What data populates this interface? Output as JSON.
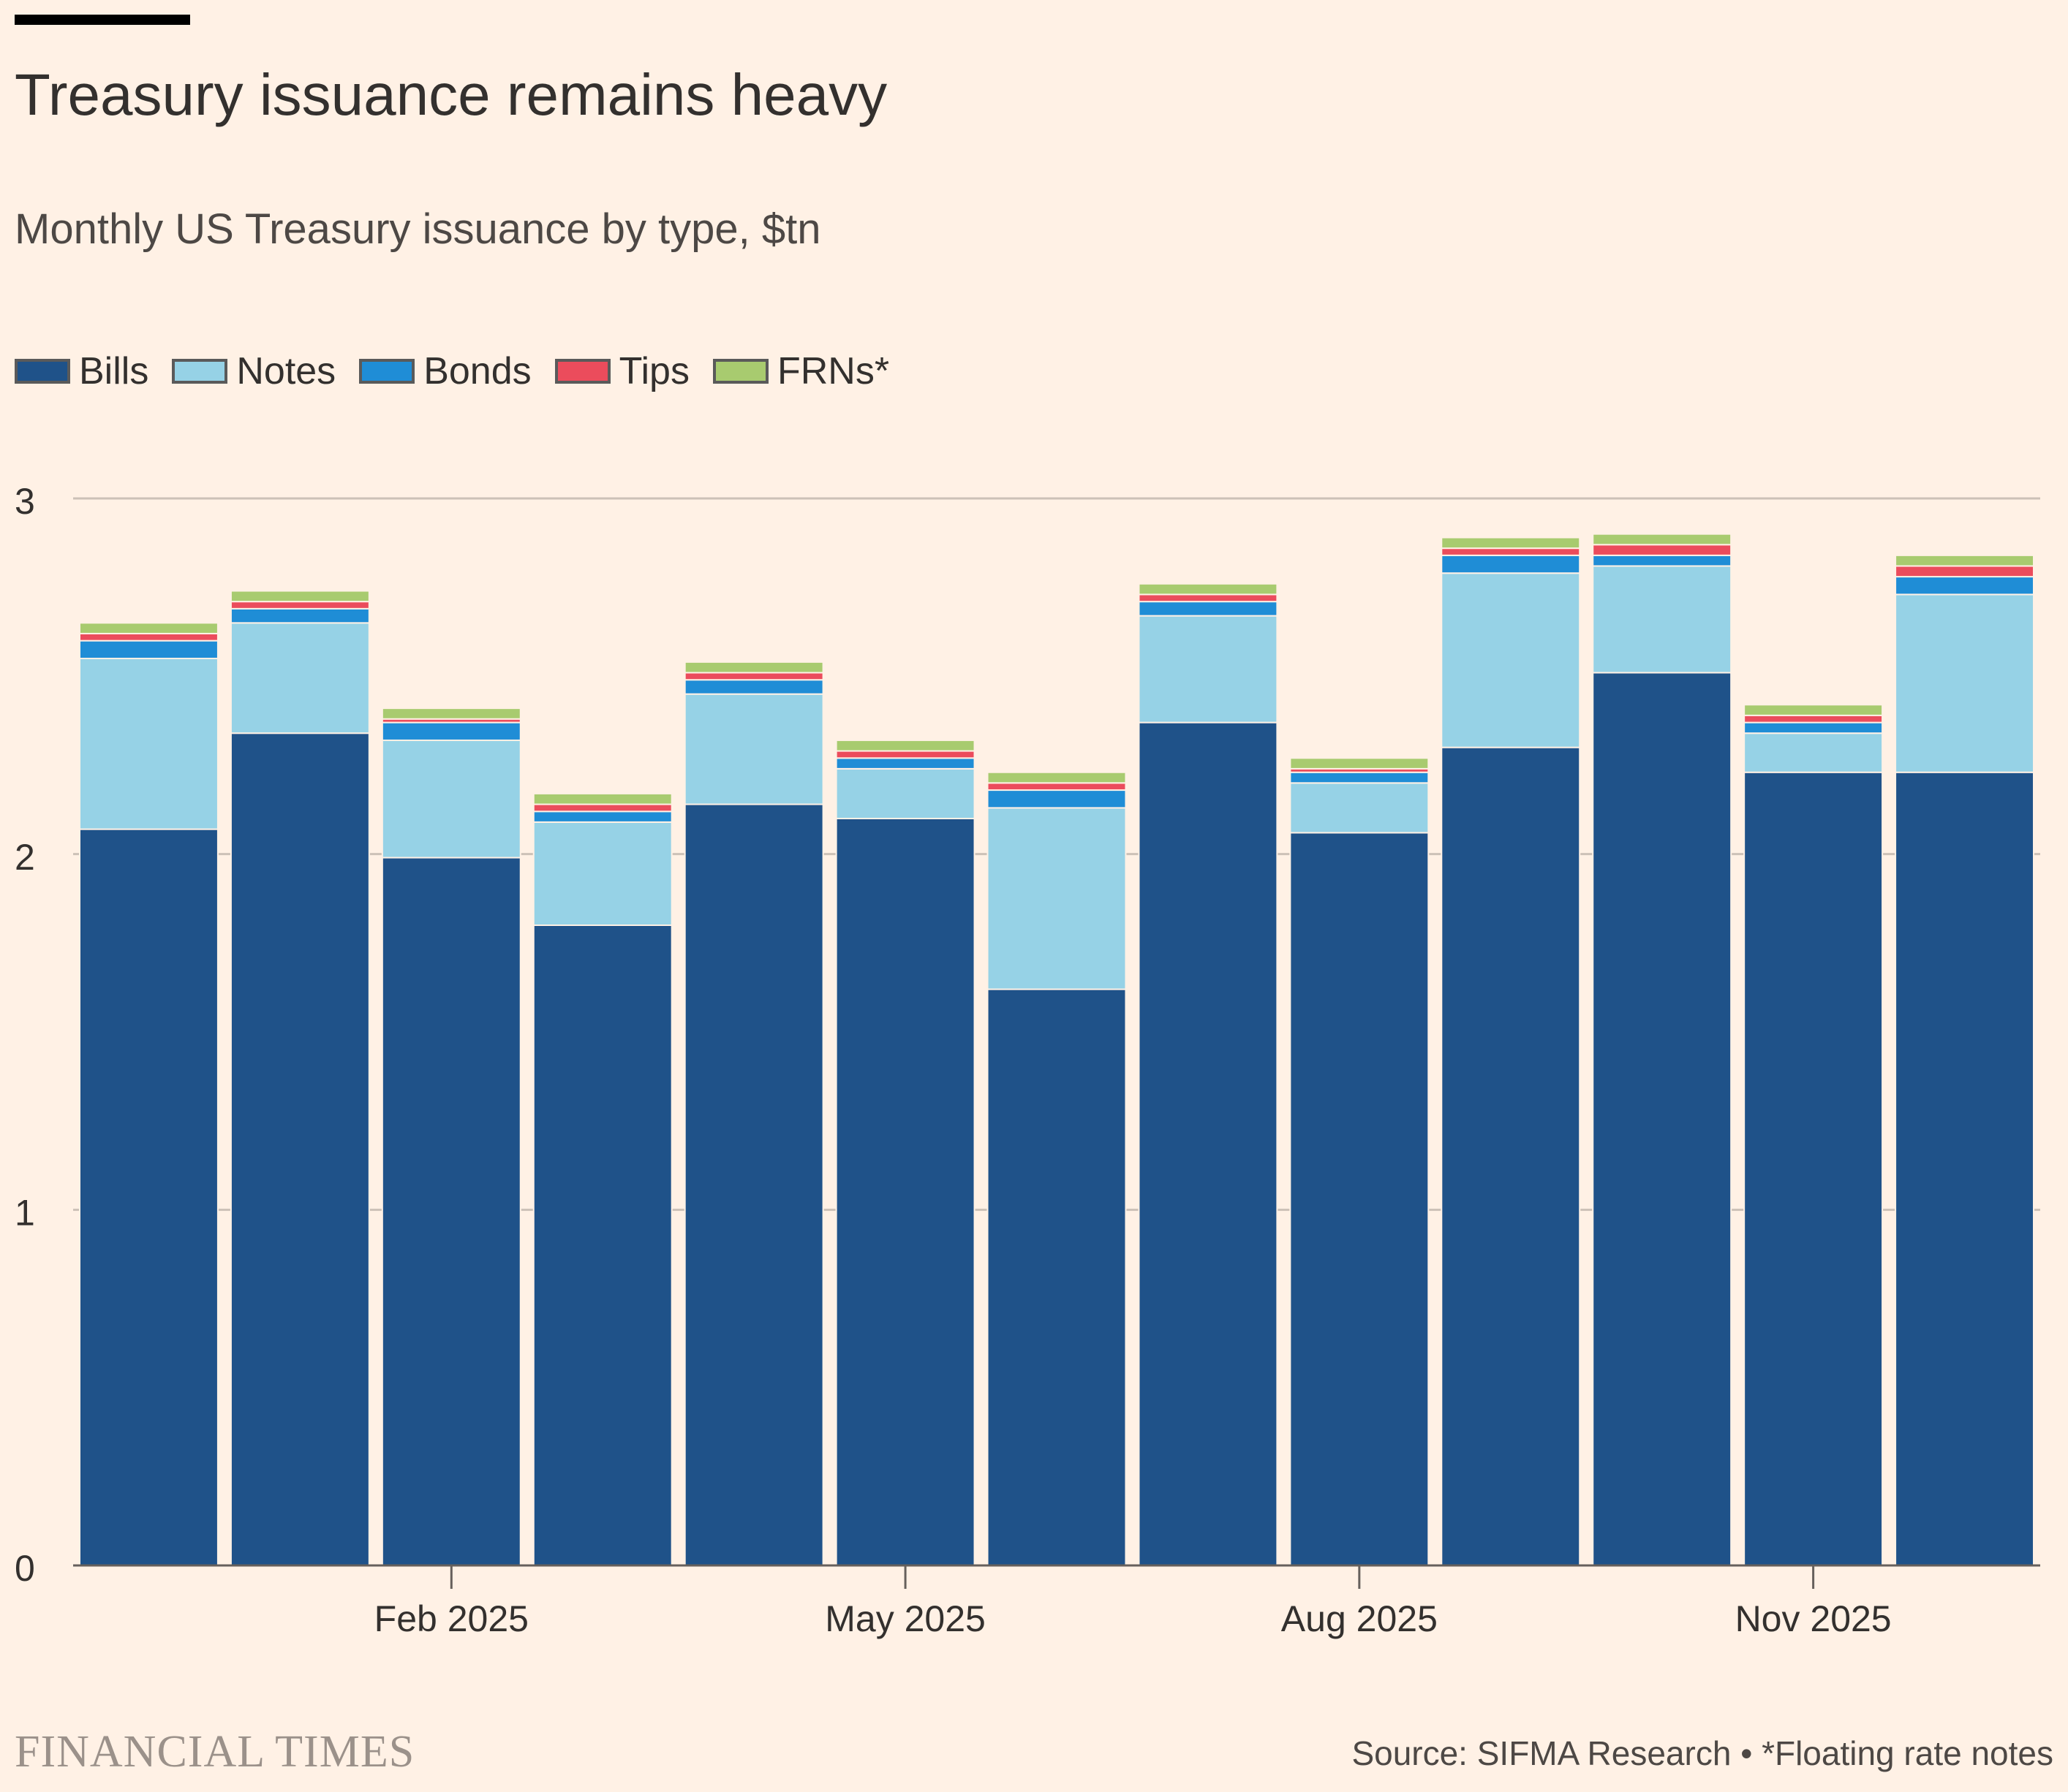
{
  "colors": {
    "background": "#FFF1E5",
    "grid": "#CCC1B7",
    "axis": "#66605C",
    "text": "#33302E",
    "muted": "#4D4845"
  },
  "brand": "FINANCIAL TIMES",
  "source_note": "Source: SIFMA Research • *Floating rate notes",
  "chart_data": {
    "type": "bar",
    "stacked": true,
    "title": "Treasury issuance remains heavy",
    "subtitle": "Monthly US Treasury issuance by type, $tn",
    "xlabel": "",
    "ylabel": "",
    "ylim": [
      0,
      3
    ],
    "yticks": [
      0,
      1,
      2,
      3
    ],
    "grid": true,
    "legend_position": "top-left",
    "categories": [
      "Dec 2024",
      "Jan 2025",
      "Feb 2025",
      "Mar 2025",
      "Apr 2025",
      "May 2025",
      "Jun 2025",
      "Jul 2025",
      "Aug 2025",
      "Sep 2025",
      "Oct 2025",
      "Nov 2025",
      "Dec 2025"
    ],
    "xtick_labels": [
      {
        "category_index": 2,
        "label": "Feb 2025"
      },
      {
        "category_index": 5,
        "label": "May 2025"
      },
      {
        "category_index": 8,
        "label": "Aug 2025"
      },
      {
        "category_index": 11,
        "label": "Nov 2025"
      }
    ],
    "series": [
      {
        "name": "Bills",
        "color": "#1F5289",
        "values": [
          2.07,
          2.34,
          1.99,
          1.8,
          2.14,
          2.1,
          1.62,
          2.37,
          2.06,
          2.3,
          2.51,
          2.23,
          2.23
        ]
      },
      {
        "name": "Notes",
        "color": "#96D2E6",
        "values": [
          0.48,
          0.31,
          0.33,
          0.29,
          0.31,
          0.14,
          0.51,
          0.3,
          0.14,
          0.49,
          0.3,
          0.11,
          0.5
        ]
      },
      {
        "name": "Bonds",
        "color": "#1F8DD6",
        "values": [
          0.05,
          0.04,
          0.05,
          0.03,
          0.04,
          0.03,
          0.05,
          0.04,
          0.03,
          0.05,
          0.03,
          0.03,
          0.05
        ]
      },
      {
        "name": "Tips",
        "color": "#EB4C5C",
        "values": [
          0.02,
          0.02,
          0.01,
          0.02,
          0.02,
          0.02,
          0.02,
          0.02,
          0.01,
          0.02,
          0.03,
          0.02,
          0.03
        ]
      },
      {
        "name": "FRNs*",
        "color": "#A8CB6F",
        "values": [
          0.03,
          0.03,
          0.03,
          0.03,
          0.03,
          0.03,
          0.03,
          0.03,
          0.03,
          0.03,
          0.03,
          0.03,
          0.03
        ]
      }
    ]
  }
}
